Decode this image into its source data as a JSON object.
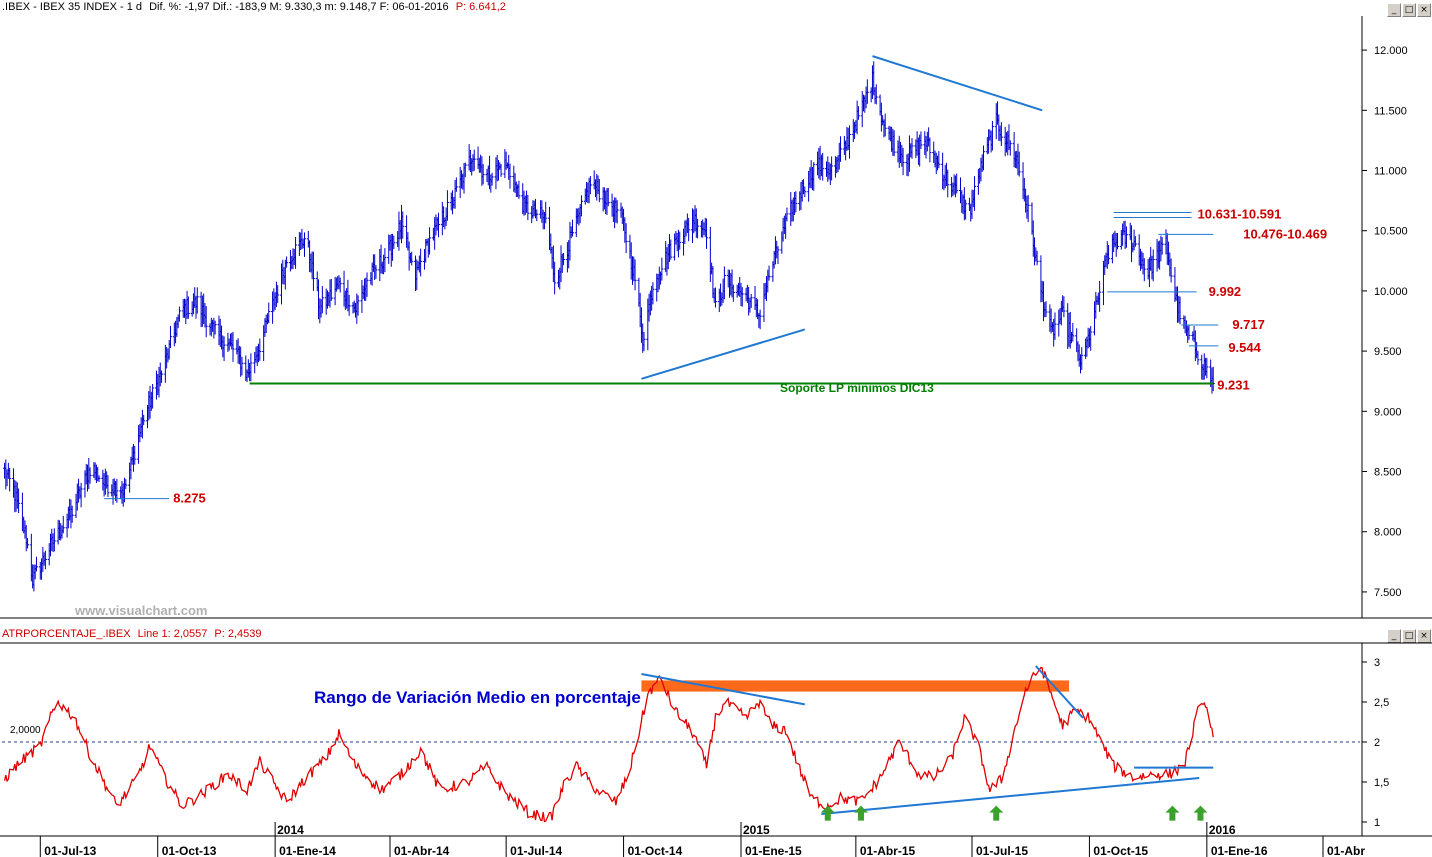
{
  "header": {
    "instrument": ".IBEX - IBEX 35 INDEX - 1 d",
    "stats": "Dif. %: -1,97  Dif.: -183,9  M: 9.330,3  m: 9.148,7  F: 06-01-2016",
    "volume": "P: 6.641,2"
  },
  "indicator_header": {
    "name": "ATRPORCENTAJE_.IBEX",
    "line": "Line 1: 2,0557",
    "p": "P: 2,4539"
  },
  "watermark": "www.visualchart.com",
  "window_buttons": {
    "minimize": "_",
    "restore": "□",
    "close": "×"
  },
  "colors": {
    "price_bars": "#0000cc",
    "trend_lines": "#1f78d1",
    "support": "#008000",
    "level_labels": "#cc0000",
    "atr_line": "#e00000",
    "orange_band": "#ff6a1a",
    "arrows": "#3aa12c",
    "title_blue": "#0000cc"
  },
  "annotations": {
    "support_label": "Soporte LP mínimos DIC13",
    "atr_title": "Rango de Variación Medio en porcentaje",
    "atr_ref_label": "2,0000",
    "levels": [
      "10.631-10.591",
      "10.476-10.469",
      "9.992",
      "9.717",
      "9.544",
      "9.231",
      "8.275"
    ]
  },
  "chart_data": [
    {
      "type": "bar",
      "series_kind": "ohlc_daily",
      "title": "",
      "xlabel": "",
      "ylabel": "",
      "ylim": [
        7300,
        12250
      ],
      "y_ticks": [
        "12.000",
        "11.500",
        "11.000",
        "10.500",
        "10.000",
        "9.500",
        "9.000",
        "8.500",
        "8.000",
        "7.500"
      ],
      "y_tick_values": [
        12000,
        11500,
        11000,
        10500,
        10000,
        9500,
        9000,
        8500,
        8000,
        7500
      ],
      "x_ticks": [
        "01-Jul-13",
        "01-Oct-13",
        "01-Ene-14",
        "01-Abr-14",
        "01-Jul-14",
        "01-Oct-14",
        "01-Ene-15",
        "01-Abr-15",
        "01-Jul-15",
        "01-Oct-15",
        "01-Ene-16",
        "01-Abr"
      ],
      "year_markers": [
        "2014",
        "2015",
        "2016"
      ],
      "x_range": [
        "2013-06-01",
        "2016-04-30"
      ],
      "grid": false,
      "close_path": [
        [
          "2013-06-01",
          8550
        ],
        [
          "2013-06-10",
          8350
        ],
        [
          "2013-06-20",
          7950
        ],
        [
          "2013-06-25",
          7600
        ],
        [
          "2013-07-10",
          7900
        ],
        [
          "2013-07-25",
          8150
        ],
        [
          "2013-08-10",
          8550
        ],
        [
          "2013-08-20",
          8400
        ],
        [
          "2013-09-05",
          8350
        ],
        [
          "2013-09-20",
          8950
        ],
        [
          "2013-10-05",
          9350
        ],
        [
          "2013-10-20",
          9850
        ],
        [
          "2013-11-01",
          9900
        ],
        [
          "2013-11-15",
          9650
        ],
        [
          "2013-12-01",
          9500
        ],
        [
          "2013-12-10",
          9300
        ],
        [
          "2013-12-20",
          9550
        ],
        [
          "2014-01-10",
          10250
        ],
        [
          "2014-01-25",
          10450
        ],
        [
          "2014-02-05",
          9850
        ],
        [
          "2014-02-20",
          10050
        ],
        [
          "2014-03-05",
          9850
        ],
        [
          "2014-03-15",
          10100
        ],
        [
          "2014-04-01",
          10350
        ],
        [
          "2014-04-10",
          10550
        ],
        [
          "2014-04-20",
          10100
        ],
        [
          "2014-05-01",
          10400
        ],
        [
          "2014-05-20",
          10750
        ],
        [
          "2014-06-05",
          11150
        ],
        [
          "2014-06-15",
          10950
        ],
        [
          "2014-07-01",
          11050
        ],
        [
          "2014-07-15",
          10700
        ],
        [
          "2014-08-01",
          10600
        ],
        [
          "2014-08-08",
          10100
        ],
        [
          "2014-08-25",
          10550
        ],
        [
          "2014-09-05",
          10900
        ],
        [
          "2014-09-15",
          10800
        ],
        [
          "2014-09-30",
          10600
        ],
        [
          "2014-10-10",
          10100
        ],
        [
          "2014-10-16",
          9600
        ],
        [
          "2014-10-25",
          10100
        ],
        [
          "2014-11-10",
          10400
        ],
        [
          "2014-11-25",
          10600
        ],
        [
          "2014-12-05",
          10500
        ],
        [
          "2014-12-12",
          9850
        ],
        [
          "2014-12-20",
          10100
        ],
        [
          "2015-01-05",
          9950
        ],
        [
          "2015-01-15",
          9800
        ],
        [
          "2015-01-25",
          10200
        ],
        [
          "2015-02-10",
          10700
        ],
        [
          "2015-03-01",
          11050
        ],
        [
          "2015-03-15",
          11000
        ],
        [
          "2015-04-05",
          11500
        ],
        [
          "2015-04-14",
          11750
        ],
        [
          "2015-04-25",
          11300
        ],
        [
          "2015-05-10",
          11100
        ],
        [
          "2015-05-25",
          11250
        ],
        [
          "2015-06-10",
          10950
        ],
        [
          "2015-06-20",
          10800
        ],
        [
          "2015-06-29",
          10650
        ],
        [
          "2015-07-10",
          11100
        ],
        [
          "2015-07-20",
          11400
        ],
        [
          "2015-08-05",
          11100
        ],
        [
          "2015-08-15",
          10600
        ],
        [
          "2015-08-24",
          10000
        ],
        [
          "2015-09-01",
          9650
        ],
        [
          "2015-09-10",
          9800
        ],
        [
          "2015-09-25",
          9400
        ],
        [
          "2015-10-05",
          9800
        ],
        [
          "2015-10-15",
          10300
        ],
        [
          "2015-10-25",
          10450
        ],
        [
          "2015-11-05",
          10400
        ],
        [
          "2015-11-15",
          10150
        ],
        [
          "2015-11-30",
          10400
        ],
        [
          "2015-12-07",
          9950
        ],
        [
          "2015-12-14",
          9700
        ],
        [
          "2015-12-22",
          9550
        ],
        [
          "2016-01-06",
          9231
        ]
      ],
      "levels": [
        {
          "label": "10.631-10.591",
          "value": 10610,
          "from": "2015-10-20",
          "to": "2015-12-20"
        },
        {
          "label": "10.476-10.469",
          "value": 10470,
          "from": "2015-11-24",
          "to": "2016-01-06"
        },
        {
          "label": "9.992",
          "value": 9992,
          "from": "2015-10-15",
          "to": "2015-12-24"
        },
        {
          "label": "9.717",
          "value": 9717,
          "from": "2015-12-12",
          "to": "2016-01-10"
        },
        {
          "label": "9.544",
          "value": 9544,
          "from": "2015-12-18",
          "to": "2016-01-10"
        },
        {
          "label": "9.231",
          "value": 9231,
          "from": "2013-12-12",
          "to": "2016-01-06"
        },
        {
          "label": "8.275",
          "value": 8275,
          "from": "2013-08-20",
          "to": "2013-10-10"
        }
      ],
      "trendlines": [
        {
          "from": [
            "2015-04-14",
            11950
          ],
          "to": [
            "2015-08-25",
            11500
          ]
        },
        {
          "from": [
            "2014-10-15",
            9270
          ],
          "to": [
            "2015-02-20",
            9680
          ]
        }
      ]
    },
    {
      "type": "line",
      "title": "",
      "xlabel": "",
      "ylabel": "",
      "ylim": [
        0.85,
        3.2
      ],
      "y_ticks": [
        "3",
        "2,5",
        "2",
        "1,5",
        "1"
      ],
      "y_tick_values": [
        3,
        2.5,
        2,
        1.5,
        1
      ],
      "reference_line": 2.0,
      "x_range": [
        "2013-06-01",
        "2016-04-30"
      ],
      "series": [
        {
          "values_path": [
            [
              "2013-06-01",
              1.5
            ],
            [
              "2013-06-15",
              1.75
            ],
            [
              "2013-07-01",
              1.95
            ],
            [
              "2013-07-10",
              2.35
            ],
            [
              "2013-07-15",
              2.5
            ],
            [
              "2013-07-28",
              2.3
            ],
            [
              "2013-08-10",
              1.8
            ],
            [
              "2013-08-25",
              1.35
            ],
            [
              "2013-08-30",
              1.2
            ],
            [
              "2013-09-15",
              1.55
            ],
            [
              "2013-09-25",
              1.95
            ],
            [
              "2013-10-05",
              1.6
            ],
            [
              "2013-10-20",
              1.2
            ],
            [
              "2013-11-05",
              1.35
            ],
            [
              "2013-11-25",
              1.6
            ],
            [
              "2013-12-10",
              1.4
            ],
            [
              "2013-12-20",
              1.75
            ],
            [
              "2014-01-10",
              1.25
            ],
            [
              "2014-01-25",
              1.55
            ],
            [
              "2014-02-10",
              1.8
            ],
            [
              "2014-02-20",
              2.1
            ],
            [
              "2014-03-05",
              1.7
            ],
            [
              "2014-03-25",
              1.4
            ],
            [
              "2014-04-10",
              1.6
            ],
            [
              "2014-04-25",
              1.9
            ],
            [
              "2014-05-10",
              1.4
            ],
            [
              "2014-06-01",
              1.5
            ],
            [
              "2014-06-15",
              1.7
            ],
            [
              "2014-07-01",
              1.35
            ],
            [
              "2014-07-20",
              1.1
            ],
            [
              "2014-08-05",
              1.05
            ],
            [
              "2014-08-15",
              1.45
            ],
            [
              "2014-08-25",
              1.7
            ],
            [
              "2014-09-10",
              1.4
            ],
            [
              "2014-09-25",
              1.25
            ],
            [
              "2014-10-05",
              1.6
            ],
            [
              "2014-10-12",
              2.05
            ],
            [
              "2014-10-20",
              2.6
            ],
            [
              "2014-10-30",
              2.8
            ],
            [
              "2014-11-10",
              2.4
            ],
            [
              "2014-11-25",
              2.1
            ],
            [
              "2014-12-05",
              1.7
            ],
            [
              "2014-12-12",
              2.3
            ],
            [
              "2014-12-20",
              2.5
            ],
            [
              "2015-01-05",
              2.3
            ],
            [
              "2015-01-15",
              2.5
            ],
            [
              "2015-01-25",
              2.2
            ],
            [
              "2015-02-05",
              2.15
            ],
            [
              "2015-02-15",
              1.7
            ],
            [
              "2015-02-25",
              1.3
            ],
            [
              "2015-03-10",
              1.2
            ],
            [
              "2015-03-20",
              1.3
            ],
            [
              "2015-04-05",
              1.25
            ],
            [
              "2015-04-20",
              1.55
            ],
            [
              "2015-05-05",
              2.0
            ],
            [
              "2015-05-20",
              1.6
            ],
            [
              "2015-06-01",
              1.55
            ],
            [
              "2015-06-15",
              1.8
            ],
            [
              "2015-06-25",
              2.3
            ],
            [
              "2015-07-05",
              2.0
            ],
            [
              "2015-07-15",
              1.4
            ],
            [
              "2015-07-25",
              1.55
            ],
            [
              "2015-08-01",
              2.0
            ],
            [
              "2015-08-12",
              2.65
            ],
            [
              "2015-08-24",
              2.95
            ],
            [
              "2015-09-01",
              2.6
            ],
            [
              "2015-09-10",
              2.2
            ],
            [
              "2015-09-20",
              2.4
            ],
            [
              "2015-10-01",
              2.3
            ],
            [
              "2015-10-10",
              2.0
            ],
            [
              "2015-10-20",
              1.7
            ],
            [
              "2015-11-05",
              1.55
            ],
            [
              "2015-11-20",
              1.6
            ],
            [
              "2015-12-05",
              1.6
            ],
            [
              "2015-12-15",
              1.75
            ],
            [
              "2015-12-22",
              2.2
            ],
            [
              "2015-12-28",
              2.55
            ],
            [
              "2016-01-04",
              2.25
            ],
            [
              "2016-01-06",
              2.06
            ]
          ]
        }
      ],
      "band": {
        "from": "2014-10-15",
        "to": "2015-09-15",
        "low": 2.63,
        "high": 2.77
      },
      "trendlines": [
        {
          "from": [
            "2014-10-15",
            2.85
          ],
          "to": [
            "2015-02-20",
            2.47
          ]
        },
        {
          "from": [
            "2015-08-20",
            2.95
          ],
          "to": [
            "2015-09-26",
            2.3
          ]
        },
        {
          "from": [
            "2015-03-05",
            1.1
          ],
          "to": [
            "2015-12-26",
            1.55
          ]
        },
        {
          "from": [
            "2015-11-05",
            1.68
          ],
          "to": [
            "2016-01-06",
            1.68
          ]
        }
      ],
      "arrows": [
        "2015-03-10",
        "2015-04-05",
        "2015-07-20",
        "2015-12-05",
        "2015-12-27"
      ]
    }
  ]
}
